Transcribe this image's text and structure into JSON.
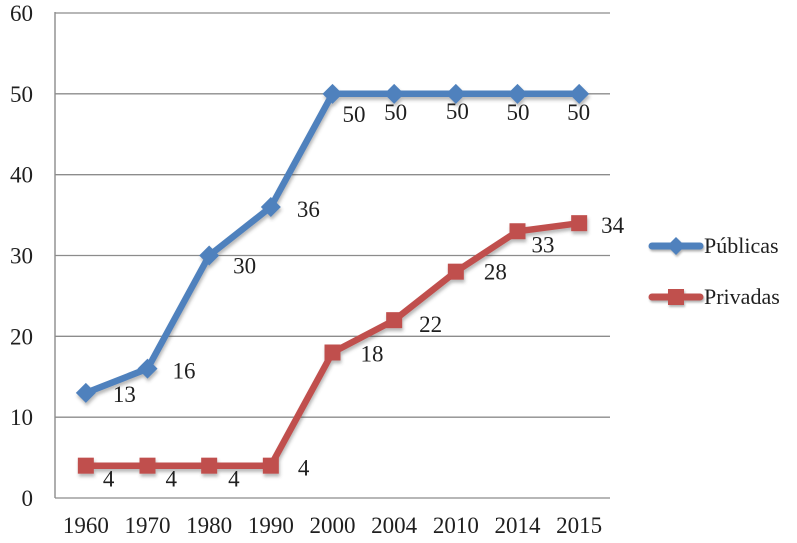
{
  "chart_data": {
    "type": "line",
    "title": "",
    "xlabel": "",
    "ylabel": "",
    "categories": [
      "1960",
      "1970",
      "1980",
      "1990",
      "2000",
      "2004",
      "2010",
      "2014",
      "2015"
    ],
    "series": [
      {
        "name": "Públicas",
        "color": "#4F81BD",
        "marker": "diamond",
        "values": [
          13,
          16,
          30,
          36,
          50,
          50,
          50,
          50,
          50
        ],
        "label_dx": [
          27,
          25,
          24,
          26,
          10,
          -10,
          -10,
          -11,
          -12
        ],
        "label_dy": [
          9,
          10,
          18,
          10,
          28,
          26,
          25,
          26,
          26
        ]
      },
      {
        "name": "Privadas",
        "color": "#C0504D",
        "marker": "square",
        "values": [
          4,
          4,
          4,
          4,
          18,
          22,
          28,
          33,
          34
        ],
        "label_dx": [
          17,
          18,
          19,
          27,
          28,
          25,
          28,
          14,
          22
        ],
        "label_dy": [
          21,
          21,
          21,
          10,
          9,
          12,
          8,
          21,
          10
        ]
      }
    ],
    "ylim": [
      0,
      60
    ],
    "ytick_step": 10,
    "yticks": [
      "0",
      "10",
      "20",
      "30",
      "40",
      "50",
      "60"
    ],
    "grid": true,
    "data_labels": true,
    "legend_position": "right",
    "axis_color": "#8C8C8C",
    "text_color": "#1f1f1f",
    "background": "#FFFFFF"
  }
}
